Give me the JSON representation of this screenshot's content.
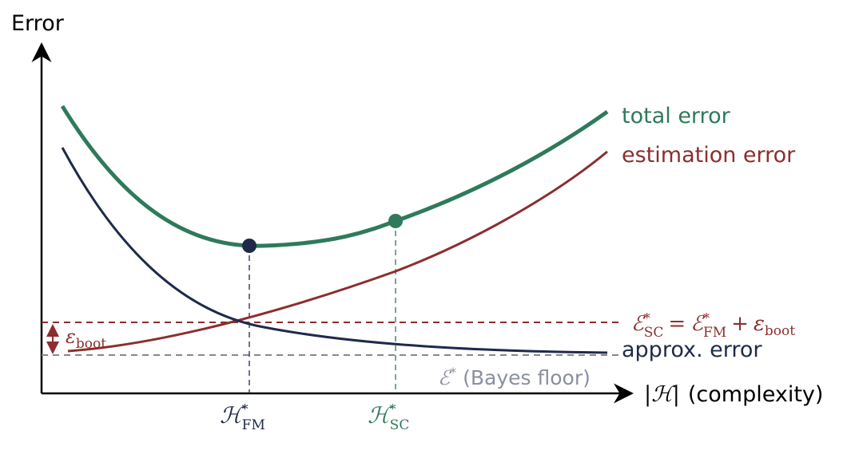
{
  "axes": {
    "y_label": "Error",
    "x_label": {
      "symbol": "|ℋ|",
      "text": "(complexity)"
    }
  },
  "curves": [
    {
      "label": "total error"
    },
    {
      "label": "estimation error"
    },
    {
      "label": "approx. error"
    }
  ],
  "equation": {
    "lhs": {
      "base": "ℰ",
      "sup": "*",
      "sub": "SC"
    },
    "eq": "=",
    "rhs": {
      "base": "ℰ",
      "sup": "*",
      "sub": "FM"
    },
    "plus": "+",
    "eps": {
      "base": "ε",
      "sub": "boot"
    }
  },
  "bayes_floor": {
    "base": "ℰ",
    "sup": "*",
    "text": "(Bayes floor)"
  },
  "eps_gap": {
    "base": "ε",
    "sub": "boot"
  },
  "markers": [
    {
      "base": "ℋ",
      "sup": "*",
      "sub": "FM"
    },
    {
      "base": "ℋ",
      "sup": "*",
      "sub": "SC"
    }
  ]
}
